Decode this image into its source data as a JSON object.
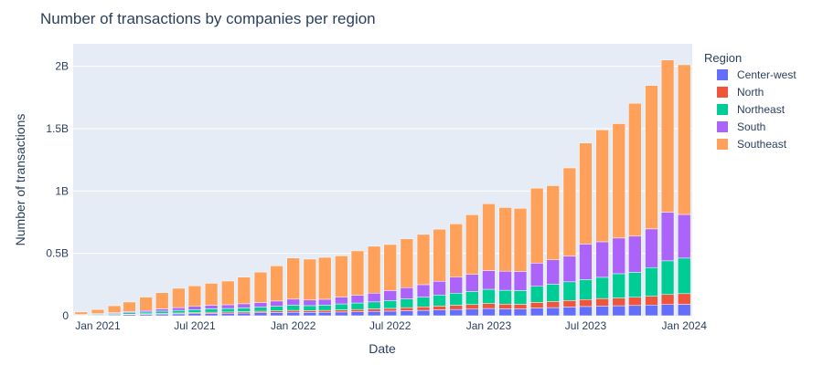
{
  "chart_data": {
    "type": "bar",
    "stacked": true,
    "title": "Number of transactions by companies per region",
    "xlabel": "Date",
    "ylabel": "Number of transactions",
    "x": [
      "2020-12",
      "2021-01",
      "2021-02",
      "2021-03",
      "2021-04",
      "2021-05",
      "2021-06",
      "2021-07",
      "2021-08",
      "2021-09",
      "2021-10",
      "2021-11",
      "2021-12",
      "2022-01",
      "2022-02",
      "2022-03",
      "2022-04",
      "2022-05",
      "2022-06",
      "2022-07",
      "2022-08",
      "2022-09",
      "2022-10",
      "2022-11",
      "2022-12",
      "2023-01",
      "2023-02",
      "2023-03",
      "2023-04",
      "2023-05",
      "2023-06",
      "2023-07",
      "2023-08",
      "2023-09",
      "2023-10",
      "2023-11",
      "2023-12",
      "2024-01"
    ],
    "xlim": [
      "2020-11-16",
      "2024-01-16"
    ],
    "x_ticks": [
      {
        "date": "2021-01-01",
        "label": "Jan 2021"
      },
      {
        "date": "2021-07-01",
        "label": "Jul 2021"
      },
      {
        "date": "2022-01-01",
        "label": "Jan 2022"
      },
      {
        "date": "2022-07-01",
        "label": "Jul 2022"
      },
      {
        "date": "2023-01-01",
        "label": "Jan 2023"
      },
      {
        "date": "2023-07-01",
        "label": "Jul 2023"
      },
      {
        "date": "2024-01-01",
        "label": "Jan 2024"
      }
    ],
    "ylim": [
      0,
      2180000000
    ],
    "y_ticks": [
      {
        "value": 0,
        "label": "0"
      },
      {
        "value": 500000000,
        "label": "0.5B"
      },
      {
        "value": 1000000000,
        "label": "1B"
      },
      {
        "value": 1500000000,
        "label": "1.5B"
      },
      {
        "value": 2000000000,
        "label": "2B"
      }
    ],
    "grid": true,
    "legend_position": "right",
    "legend_title": "Region",
    "series": [
      {
        "name": "Center-west",
        "color": "#636efa",
        "values": [
          3000000,
          5000000,
          7000000,
          9000000,
          11000000,
          13000000,
          15000000,
          17000000,
          19000000,
          20000000,
          22000000,
          24000000,
          26000000,
          28000000,
          27000000,
          28000000,
          30000000,
          32000000,
          35000000,
          37000000,
          40000000,
          43000000,
          47000000,
          50000000,
          53000000,
          58000000,
          55000000,
          54000000,
          62000000,
          65000000,
          70000000,
          74000000,
          78000000,
          80000000,
          82000000,
          86000000,
          90000000,
          92000000
        ]
      },
      {
        "name": "North",
        "color": "#ef553b",
        "values": [
          1000000,
          2000000,
          3000000,
          4000000,
          5000000,
          6000000,
          7000000,
          8000000,
          9000000,
          10000000,
          11000000,
          12000000,
          13000000,
          15000000,
          14000000,
          15000000,
          17000000,
          18000000,
          20000000,
          22000000,
          25000000,
          28000000,
          31000000,
          34000000,
          37000000,
          40000000,
          38000000,
          38000000,
          45000000,
          48000000,
          52000000,
          56000000,
          60000000,
          62000000,
          66000000,
          70000000,
          80000000,
          85000000
        ]
      },
      {
        "name": "Northeast",
        "color": "#00cc96",
        "values": [
          4000000,
          6000000,
          8000000,
          11000000,
          14000000,
          18000000,
          21000000,
          24000000,
          27000000,
          28000000,
          30000000,
          33000000,
          37000000,
          42000000,
          40000000,
          42000000,
          48000000,
          52000000,
          56000000,
          63000000,
          70000000,
          78000000,
          88000000,
          97000000,
          105000000,
          114000000,
          111000000,
          110000000,
          129000000,
          140000000,
          150000000,
          160000000,
          170000000,
          195000000,
          200000000,
          230000000,
          270000000,
          285000000
        ]
      },
      {
        "name": "South",
        "color": "#ab63fa",
        "values": [
          2000000,
          4000000,
          6000000,
          9000000,
          12000000,
          18000000,
          22000000,
          26000000,
          29000000,
          30000000,
          33000000,
          37000000,
          42000000,
          48000000,
          45000000,
          47000000,
          55000000,
          62000000,
          70000000,
          80000000,
          90000000,
          100000000,
          110000000,
          128000000,
          137000000,
          150000000,
          153000000,
          153000000,
          186000000,
          195000000,
          205000000,
          285000000,
          285000000,
          286000000,
          290000000,
          310000000,
          390000000,
          350000000
        ]
      },
      {
        "name": "Southeast",
        "color": "#ffa15a",
        "values": [
          20000000,
          33000000,
          56000000,
          77000000,
          108000000,
          130000000,
          155000000,
          165000000,
          176000000,
          190000000,
          214000000,
          244000000,
          282000000,
          330000000,
          328000000,
          336000000,
          330000000,
          356000000,
          376000000,
          369000000,
          392000000,
          403000000,
          418000000,
          428000000,
          478000000,
          536000000,
          511000000,
          506000000,
          601000000,
          595000000,
          708000000,
          810000000,
          897000000,
          917000000,
          1065000000,
          1150000000,
          1220000000,
          1200000000
        ]
      }
    ]
  }
}
